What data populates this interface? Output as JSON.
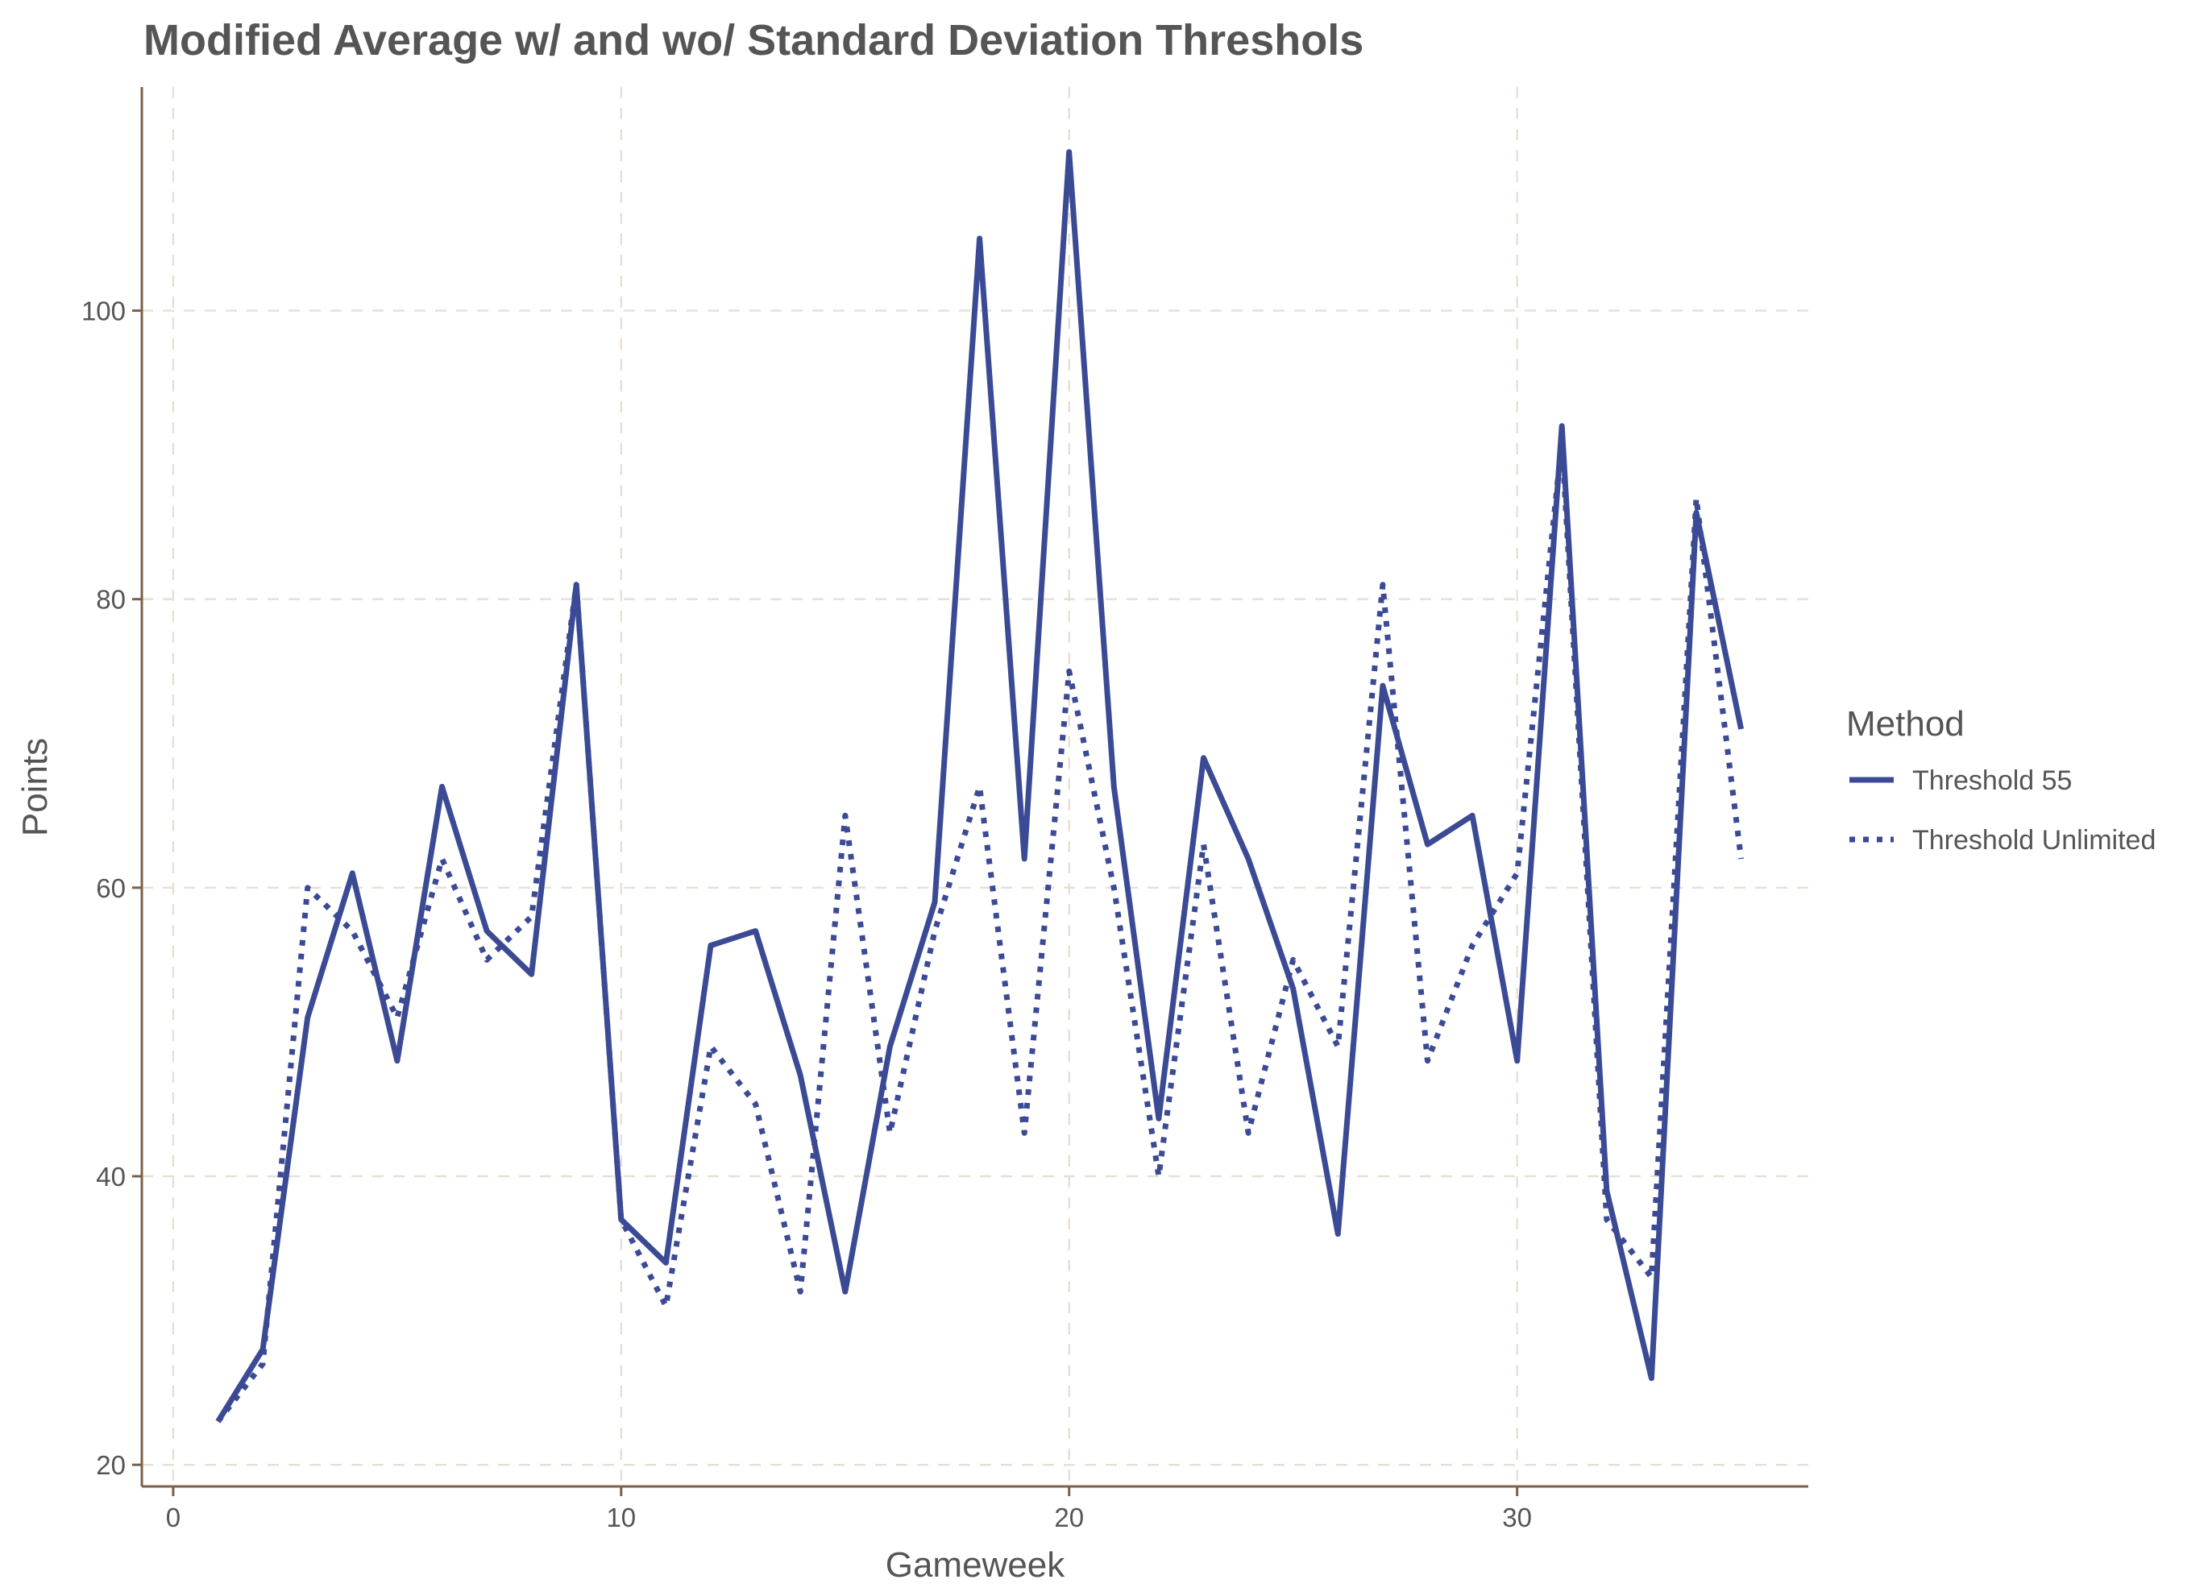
{
  "chart_data": {
    "type": "line",
    "title": "Modified Average w/ and wo/ Standard Deviation Threshols",
    "xlabel": "Gameweek",
    "ylabel": "Points",
    "xlim": [
      -0.7,
      36.5
    ],
    "ylim": [
      18.5,
      115.5
    ],
    "xticks": [
      0,
      10,
      20,
      30
    ],
    "yticks": [
      20,
      40,
      60,
      80,
      100
    ],
    "grid": true,
    "legend": {
      "title": "Method",
      "position": "right"
    },
    "line_color": "#3b4a94",
    "x": [
      1,
      2,
      3,
      4,
      5,
      6,
      7,
      8,
      9,
      10,
      11,
      12,
      13,
      14,
      15,
      16,
      17,
      18,
      19,
      20,
      21,
      22,
      23,
      24,
      25,
      26,
      27,
      28,
      29,
      30,
      31,
      32,
      33,
      34,
      35
    ],
    "series": [
      {
        "name": "Threshold 55",
        "style": "solid",
        "values": [
          23,
          28,
          51,
          61,
          48,
          67,
          57,
          54,
          81,
          37,
          34,
          56,
          57,
          47,
          32,
          49,
          59,
          105,
          62,
          111,
          67,
          44,
          69,
          62,
          53,
          36,
          74,
          63,
          65,
          48,
          92,
          39,
          26,
          86,
          71
        ]
      },
      {
        "name": "Threshold Unlimited",
        "style": "dotted",
        "values": [
          23,
          27,
          60,
          57,
          51,
          62,
          55,
          58,
          81,
          37,
          31,
          49,
          45,
          32,
          65,
          43,
          57,
          67,
          43,
          75,
          60,
          40,
          63,
          43,
          55,
          49,
          81,
          48,
          56,
          61,
          91,
          37,
          33,
          87,
          62
        ]
      }
    ]
  }
}
